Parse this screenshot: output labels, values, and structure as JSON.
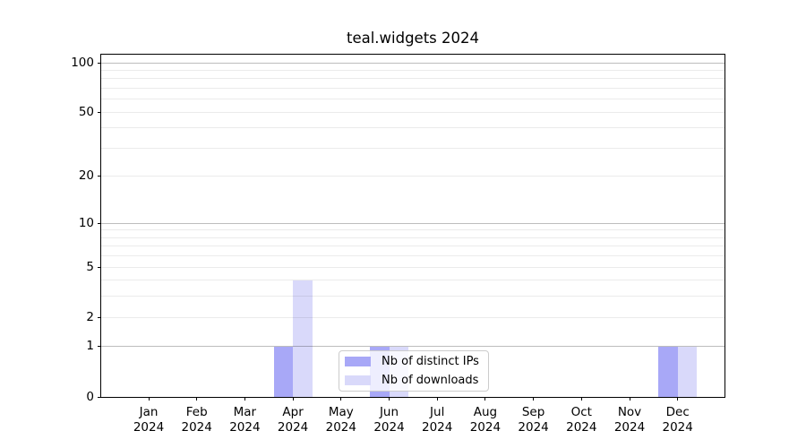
{
  "figure": {
    "title": "teal.widgets 2024"
  },
  "chart_data": {
    "type": "bar",
    "title": "teal.widgets 2024",
    "categories": [
      "Jan",
      "Feb",
      "Mar",
      "Apr",
      "May",
      "Jun",
      "Jul",
      "Aug",
      "Sep",
      "Oct",
      "Nov",
      "Dec"
    ],
    "category_year": "2024",
    "series": [
      {
        "name": "Nb of distinct IPs",
        "color": "#a8a8f7",
        "values": [
          0,
          0,
          0,
          1,
          0,
          1,
          0,
          0,
          0,
          0,
          0,
          1
        ]
      },
      {
        "name": "Nb of downloads",
        "color": "#d9d9fa",
        "values": [
          0,
          0,
          0,
          4,
          0,
          1,
          0,
          0,
          0,
          0,
          0,
          1
        ]
      }
    ],
    "xlabel": "",
    "ylabel": "",
    "yscale": "log1p",
    "ylim": [
      0,
      112
    ],
    "ytick_labels": [
      0,
      1,
      2,
      5,
      10,
      20,
      50,
      100
    ],
    "grid": true,
    "grid_major": [
      1,
      10,
      100
    ],
    "grid_minor": [
      2,
      3,
      4,
      5,
      6,
      7,
      8,
      9,
      20,
      30,
      40,
      50,
      60,
      70,
      80,
      90
    ],
    "legend_position": "lower center",
    "colors": {
      "background": "#ffffff",
      "text": "#000000",
      "spine": "#000000",
      "grid_major": "rgba(0,0,0,0.26)",
      "grid_minor": "rgba(0,0,0,0.08)",
      "legend_border": "#cccccc",
      "legend_bg": "rgba(255,255,255,0.8)"
    }
  }
}
